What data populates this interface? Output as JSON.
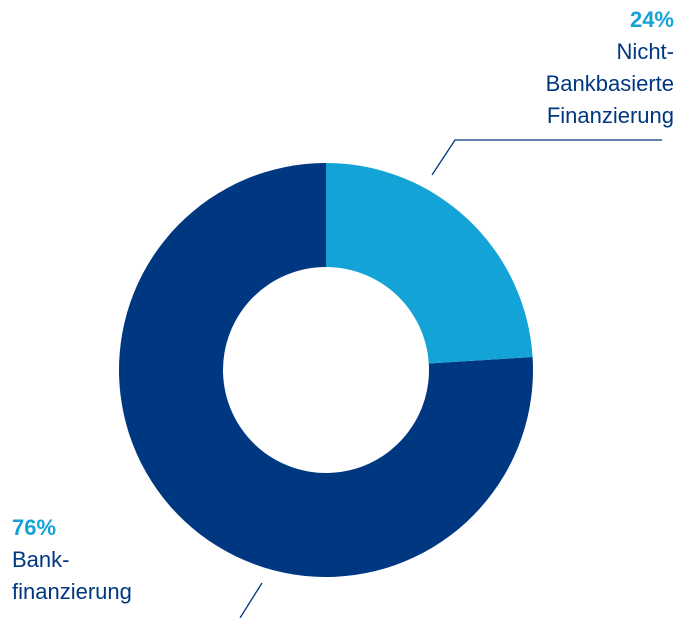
{
  "chart_data": {
    "type": "donut",
    "categories": [
      "Nicht-Bankbasierte Finanzierung",
      "Bank-finanzierung"
    ],
    "values": [
      24,
      76
    ],
    "value_labels": [
      "24%",
      "76%"
    ],
    "colors": [
      "#13a3d6",
      "#003781"
    ]
  }
}
